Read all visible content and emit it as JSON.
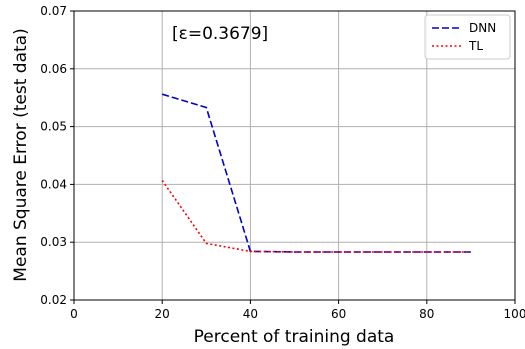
{
  "chart_data": {
    "type": "line",
    "xlabel": "Percent of training data",
    "ylabel": "Mean Square Error (test data)",
    "annotation": "[ε=0.3679]",
    "xlim": [
      0,
      100
    ],
    "ylim": [
      0.02,
      0.07
    ],
    "xticks": [
      0,
      20,
      40,
      60,
      80,
      100
    ],
    "yticks": [
      0.02,
      0.03,
      0.04,
      0.05,
      0.06,
      0.07
    ],
    "ytick_labels": [
      "0.02",
      "0.03",
      "0.04",
      "0.05",
      "0.06",
      "0.07"
    ],
    "grid": true,
    "legend_position": "top-right",
    "series": [
      {
        "name": "DNN",
        "color": "#0000cc",
        "style": "dashed",
        "x": [
          20,
          30,
          40,
          50,
          60,
          70,
          80,
          90
        ],
        "y": [
          0.0556,
          0.0533,
          0.0284,
          0.0283,
          0.0283,
          0.0283,
          0.0283,
          0.0283
        ]
      },
      {
        "name": "TL",
        "color": "#ff0000",
        "style": "dotted",
        "x": [
          20,
          30,
          40,
          50,
          60,
          70,
          80,
          90
        ],
        "y": [
          0.0407,
          0.0298,
          0.0284,
          0.0283,
          0.0283,
          0.0283,
          0.0283,
          0.0283
        ]
      }
    ]
  }
}
